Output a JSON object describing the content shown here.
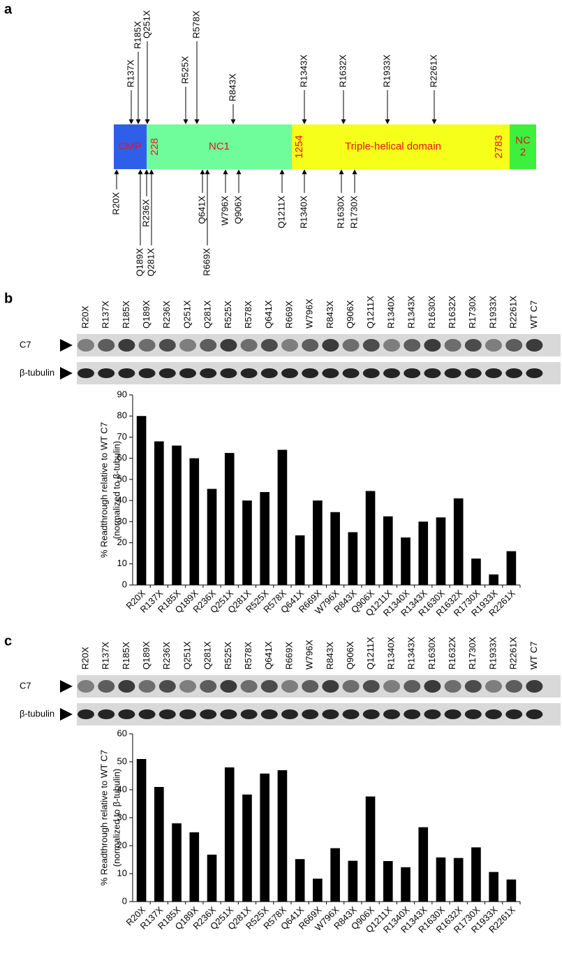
{
  "figure_labels": [
    "a",
    "b",
    "c"
  ],
  "diagram": {
    "domains": [
      {
        "label": [
          "CMP"
        ]
      },
      {
        "label": [
          "NC1"
        ]
      },
      {
        "label": [
          "Triple-helical domain"
        ]
      },
      {
        "label": [
          "NC",
          "2"
        ]
      }
    ],
    "boundaries": [
      "228",
      "1254",
      "2783"
    ],
    "mutations_above": [
      "R137X",
      "R185X",
      "Q251X",
      "R525X",
      "R578X",
      "R843X",
      "R1343X",
      "R1632X",
      "R1933X",
      "R2261X"
    ],
    "mutations_below": [
      "R20X",
      "R236X",
      "Q189X",
      "Q281X",
      "Q641X",
      "R669X",
      "W796X",
      "Q906X",
      "Q1211X",
      "R1340X",
      "R1630X",
      "R1730X"
    ]
  },
  "blots": [
    {
      "lanes": [
        "R20X",
        "R137X",
        "R185X",
        "Q189X",
        "R236X",
        "Q251X",
        "Q281X",
        "R525X",
        "R578X",
        "Q641X",
        "R669X",
        "W796X",
        "R843X",
        "Q906X",
        "Q1211X",
        "R1340X",
        "R1343X",
        "R1630X",
        "R1632X",
        "R1730X",
        "R1933X",
        "R2261X",
        "WT C7"
      ],
      "rows": [
        "C7",
        "β-tubulin"
      ]
    },
    {
      "lanes": [
        "R20X",
        "R137X",
        "R185X",
        "Q189X",
        "R236X",
        "Q251X",
        "Q281X",
        "R525X",
        "R578X",
        "Q641X",
        "R669X",
        "W796X",
        "R843X",
        "Q906X",
        "Q1211X",
        "R1340X",
        "R1343X",
        "R1630X",
        "R1632X",
        "R1730X",
        "R1933X",
        "R2261X",
        "WT C7"
      ],
      "rows": [
        "C7",
        "β-tubulin"
      ]
    }
  ],
  "chart_data": [
    {
      "type": "bar",
      "y_label": [
        "% Readthrough relative to WT C7",
        "(normalized to β-tubulin)"
      ],
      "categories": [
        "R20X",
        "R137X",
        "R185X",
        "Q189X",
        "R236X",
        "Q251X",
        "Q281X",
        "R525X",
        "R578X",
        "Q641X",
        "R669X",
        "W796X",
        "R843X",
        "Q906X",
        "Q1211X",
        "R1340X",
        "R1343X",
        "R1630X",
        "R1632X",
        "R1730X",
        "R1933X",
        "R2261X"
      ],
      "values": [
        80,
        68,
        66,
        60,
        45.5,
        62.5,
        40,
        44,
        64,
        23.5,
        40,
        34.5,
        25,
        44.5,
        32.5,
        22.5,
        30,
        32,
        41,
        12.5,
        5,
        16
      ],
      "color": "#000000",
      "ylim": [
        0,
        90
      ],
      "yticks": [
        0,
        10,
        20,
        30,
        40,
        50,
        60,
        70,
        80,
        90
      ]
    },
    {
      "type": "bar",
      "y_label": [
        "% Readthrough relative to WT C7",
        "(normalized to β-tubulin)"
      ],
      "categories": [
        "R20X",
        "R137X",
        "R185X",
        "Q189X",
        "R236X",
        "Q251X",
        "Q281X",
        "R525X",
        "R578X",
        "Q641X",
        "R669X",
        "W796X",
        "R843X",
        "Q906X",
        "Q1211X",
        "R1340X",
        "R1343X",
        "R1630X",
        "R1632X",
        "R1730X",
        "R1933X",
        "R2261X"
      ],
      "values": [
        51,
        41,
        28,
        24.8,
        16.8,
        48,
        38.3,
        45.8,
        47,
        15.2,
        8.2,
        19.1,
        14.6,
        37.6,
        14.5,
        12.3,
        26.6,
        15.8,
        15.6,
        19.4,
        10.6,
        7.9
      ],
      "color": "#000000",
      "ylim": [
        0,
        60
      ],
      "yticks": [
        0,
        10,
        20,
        30,
        40,
        50,
        60
      ]
    }
  ]
}
